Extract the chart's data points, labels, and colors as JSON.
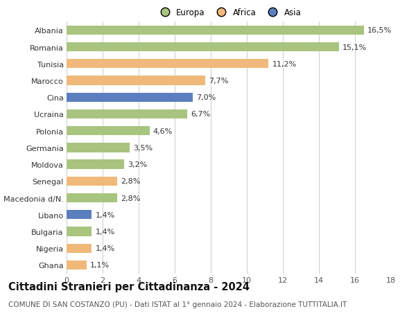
{
  "categories": [
    "Albania",
    "Romania",
    "Tunisia",
    "Marocco",
    "Cina",
    "Ucraina",
    "Polonia",
    "Germania",
    "Moldova",
    "Senegal",
    "Macedonia d/N.",
    "Libano",
    "Bulgaria",
    "Nigeria",
    "Ghana"
  ],
  "values": [
    16.5,
    15.1,
    11.2,
    7.7,
    7.0,
    6.7,
    4.6,
    3.5,
    3.2,
    2.8,
    2.8,
    1.4,
    1.4,
    1.4,
    1.1
  ],
  "labels": [
    "16,5%",
    "15,1%",
    "11,2%",
    "7,7%",
    "7,0%",
    "6,7%",
    "4,6%",
    "3,5%",
    "3,2%",
    "2,8%",
    "2,8%",
    "1,4%",
    "1,4%",
    "1,4%",
    "1,1%"
  ],
  "continents": [
    "Europa",
    "Europa",
    "Africa",
    "Africa",
    "Asia",
    "Europa",
    "Europa",
    "Europa",
    "Europa",
    "Africa",
    "Europa",
    "Asia",
    "Europa",
    "Africa",
    "Africa"
  ],
  "colors": {
    "Europa": "#a8c47f",
    "Africa": "#f0b97a",
    "Asia": "#5b7fbe"
  },
  "xlim": [
    0,
    18
  ],
  "xticks": [
    0,
    2,
    4,
    6,
    8,
    10,
    12,
    14,
    16,
    18
  ],
  "title": "Cittadini Stranieri per Cittadinanza - 2024",
  "subtitle": "COMUNE DI SAN COSTANZO (PU) - Dati ISTAT al 1° gennaio 2024 - Elaborazione TUTTITALIA.IT",
  "background_color": "#ffffff",
  "grid_color": "#cccccc",
  "bar_height": 0.55,
  "label_fontsize": 8,
  "tick_fontsize": 8,
  "title_fontsize": 10.5,
  "subtitle_fontsize": 7.5
}
